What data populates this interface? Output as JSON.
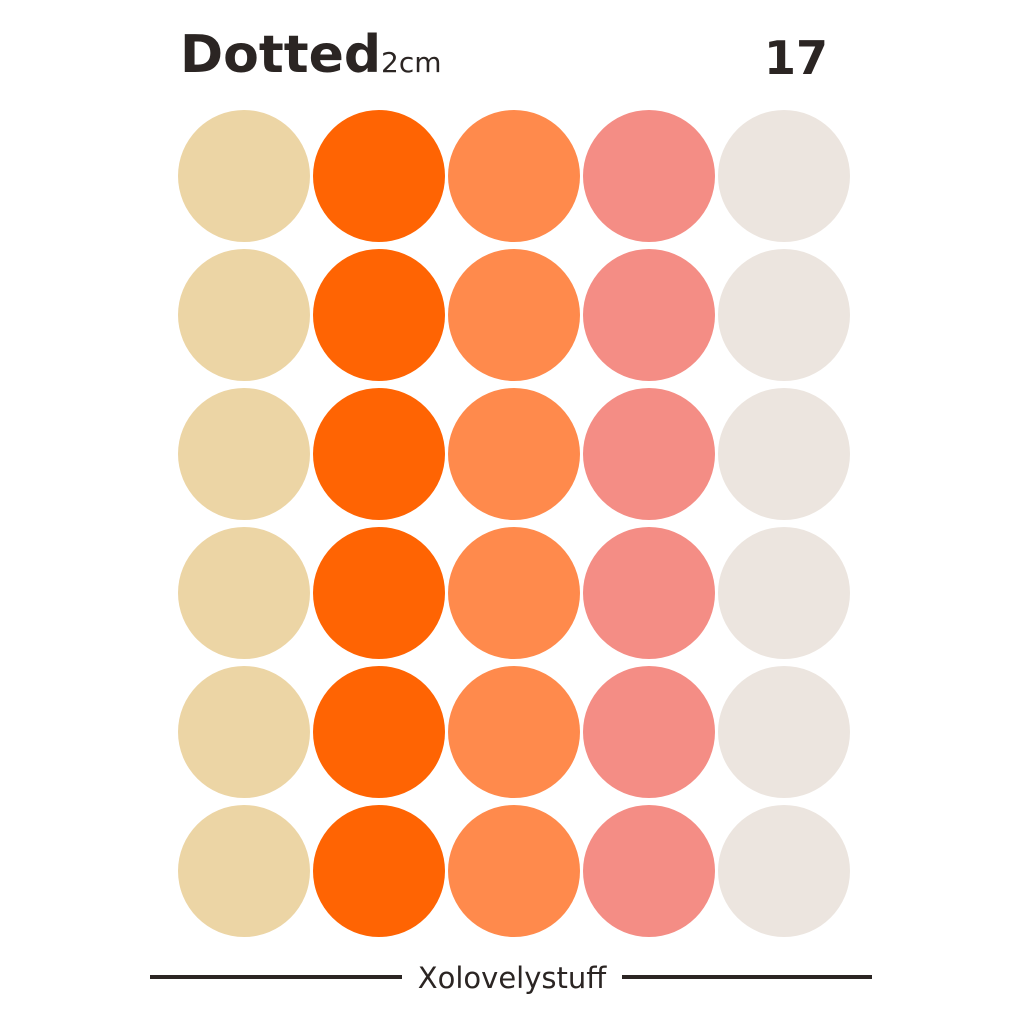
{
  "header": {
    "title": "Dotted",
    "size": "2cm",
    "number": "17"
  },
  "footer": {
    "brand": "Xolovelystuff"
  }
}
